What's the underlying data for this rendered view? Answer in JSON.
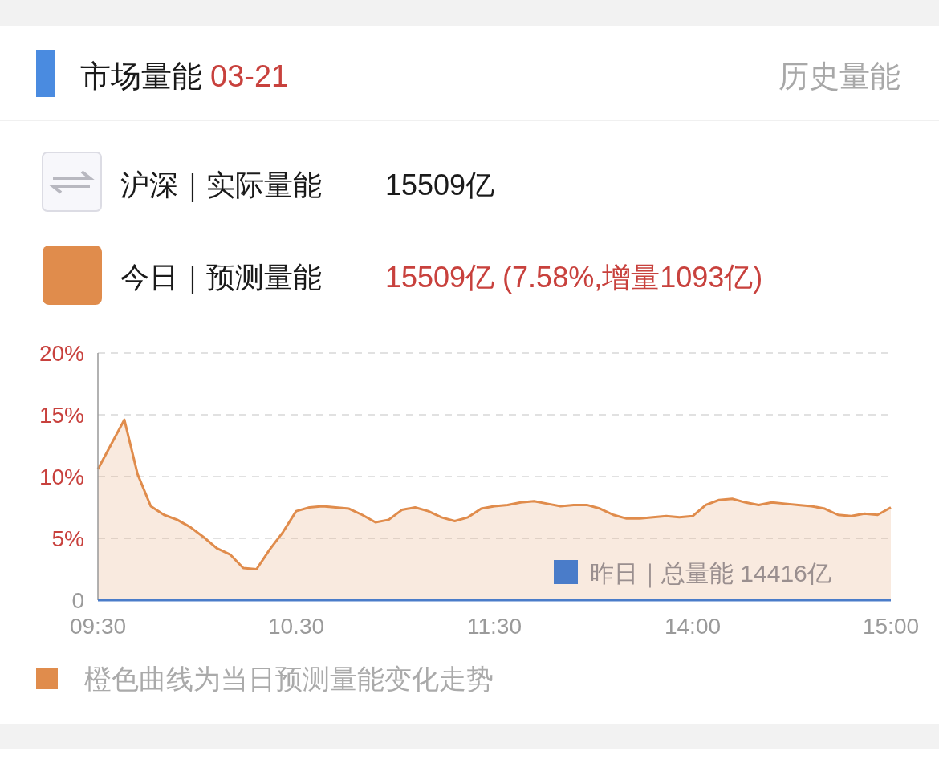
{
  "chart_data": {
    "type": "area",
    "title": "市场量能",
    "subtitle": "03-21",
    "annotations": [
      "历史量能",
      "沪深｜实际量能",
      "15509亿",
      "15509亿 (7.58%,增量1093亿)",
      "橙色曲线为当日预测量能变化走势"
    ],
    "categories": [
      "09:30",
      null,
      null,
      null,
      null,
      null,
      null,
      null,
      null,
      null,
      null,
      null,
      null,
      null,
      null,
      "10.30",
      null,
      null,
      null,
      null,
      null,
      null,
      null,
      null,
      null,
      null,
      null,
      null,
      null,
      null,
      "11:30",
      null,
      null,
      null,
      null,
      null,
      null,
      null,
      null,
      null,
      null,
      null,
      null,
      null,
      null,
      "14:00",
      null,
      null,
      null,
      null,
      null,
      null,
      null,
      null,
      null,
      null,
      null,
      null,
      null,
      null,
      "15:00"
    ],
    "ylim": [
      0,
      20
    ],
    "yticks": [
      {
        "value": 0,
        "label": "0"
      },
      {
        "value": 5,
        "label": "5%"
      },
      {
        "value": 10,
        "label": "10%"
      },
      {
        "value": 15,
        "label": "15%"
      },
      {
        "value": 20,
        "label": "20%"
      }
    ],
    "grid": "y",
    "legend": "top left",
    "series": [
      {
        "name": "今日｜预测量能",
        "color": "#e08c4c",
        "values": [
          10.6,
          12.6,
          14.6,
          10.2,
          7.6,
          6.9,
          6.5,
          5.9,
          5.1,
          4.2,
          3.7,
          2.6,
          2.5,
          4.1,
          5.5,
          7.2,
          7.5,
          7.6,
          7.5,
          7.4,
          6.9,
          6.3,
          6.5,
          7.3,
          7.5,
          7.2,
          6.7,
          6.4,
          6.7,
          7.4,
          7.6,
          7.7,
          7.9,
          8.0,
          7.8,
          7.6,
          7.7,
          7.7,
          7.4,
          6.9,
          6.6,
          6.6,
          6.7,
          6.8,
          6.7,
          6.8,
          7.7,
          8.1,
          8.2,
          7.9,
          7.7,
          7.9,
          7.8,
          7.7,
          7.6,
          7.4,
          6.9,
          6.8,
          7.0,
          6.9,
          7.5
        ]
      },
      {
        "name": "昨日｜总量能 14416亿",
        "type": "line",
        "color": "#4a7cc9",
        "values": [
          0,
          0,
          0,
          0,
          0,
          0,
          0,
          0,
          0,
          0,
          0,
          0,
          0,
          0,
          0,
          0,
          0,
          0,
          0,
          0,
          0,
          0,
          0,
          0,
          0,
          0,
          0,
          0,
          0,
          0,
          0,
          0,
          0,
          0,
          0,
          0,
          0,
          0,
          0,
          0,
          0,
          0,
          0,
          0,
          0,
          0,
          0,
          0,
          0,
          0,
          0,
          0,
          0,
          0,
          0,
          0,
          0,
          0,
          0,
          0,
          0
        ]
      }
    ]
  }
}
